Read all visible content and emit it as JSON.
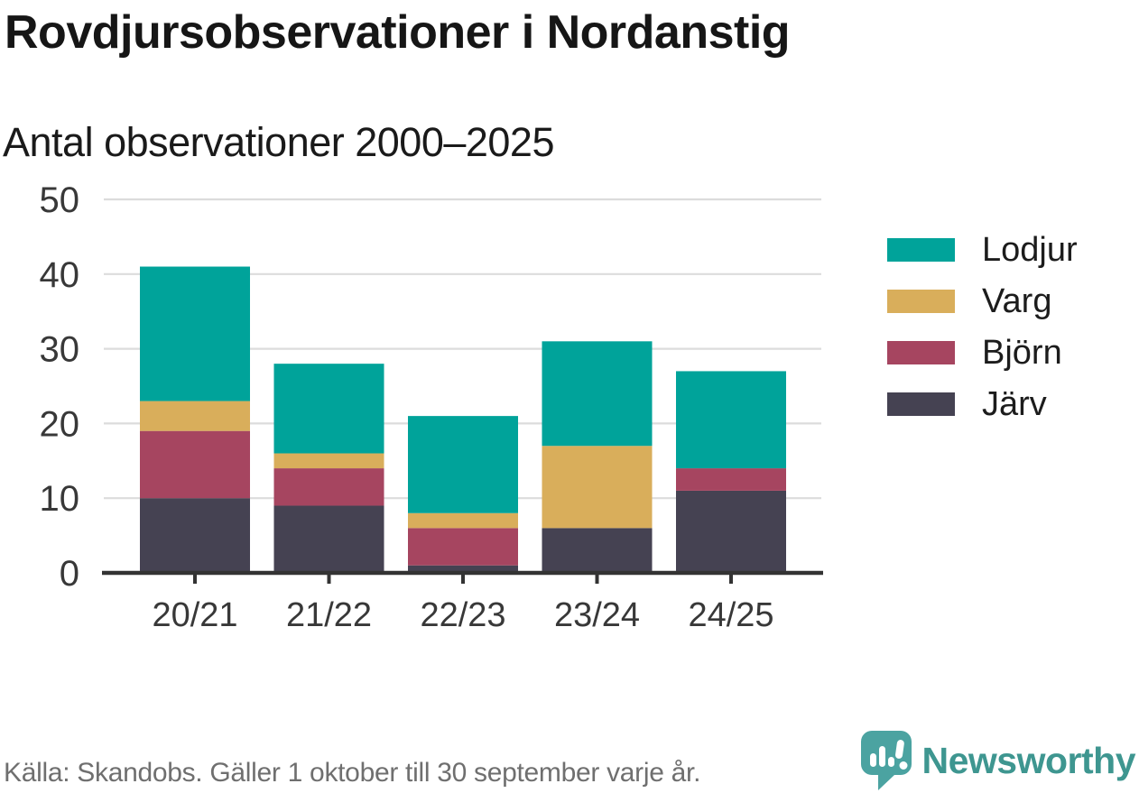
{
  "header": {
    "title": "Rovdjursobservationer i Nordanstig",
    "subtitle": "Antal observationer 2000–2025"
  },
  "chart_data": {
    "type": "bar",
    "stacked": true,
    "title": "Rovdjursobservationer i Nordanstig",
    "subtitle": "Antal observationer 2000–2025",
    "xlabel": "",
    "ylabel": "",
    "ylim": [
      0,
      50
    ],
    "ytick_step": 10,
    "grid": true,
    "legend_position": "right",
    "categories": [
      "20/21",
      "21/22",
      "22/23",
      "23/24",
      "24/25"
    ],
    "series": [
      {
        "name": "Järv",
        "color": "#454252",
        "values": [
          10,
          9,
          1,
          6,
          11
        ]
      },
      {
        "name": "Björn",
        "color": "#a64560",
        "values": [
          9,
          5,
          5,
          0,
          3
        ]
      },
      {
        "name": "Varg",
        "color": "#d9ae5b",
        "values": [
          4,
          2,
          2,
          11,
          0
        ]
      },
      {
        "name": "Lodjur",
        "color": "#00a39a",
        "values": [
          18,
          12,
          13,
          14,
          13
        ]
      }
    ],
    "totals": [
      41,
      28,
      21,
      31,
      27
    ]
  },
  "legend": {
    "items": [
      {
        "label": "Lodjur",
        "color": "#00a39a"
      },
      {
        "label": "Varg",
        "color": "#d9ae5b"
      },
      {
        "label": "Björn",
        "color": "#a64560"
      },
      {
        "label": "Järv",
        "color": "#454252"
      }
    ]
  },
  "footer": {
    "source": "Källa: Skandobs. Gäller 1 oktober till 30 september varje år.",
    "brand": "Newsworthy"
  },
  "icons": {
    "brand_logo": "newsworthy-speech-bubble-bar-chart-icon"
  },
  "colors": {
    "background": "#ffffff",
    "axis": "#333333",
    "gridline": "#dcdcdc",
    "tick_label": "#383838",
    "source_text": "#6f6f6f",
    "brand_teal": "#3e9690",
    "brand_icon_teal": "#4ba3a1"
  }
}
